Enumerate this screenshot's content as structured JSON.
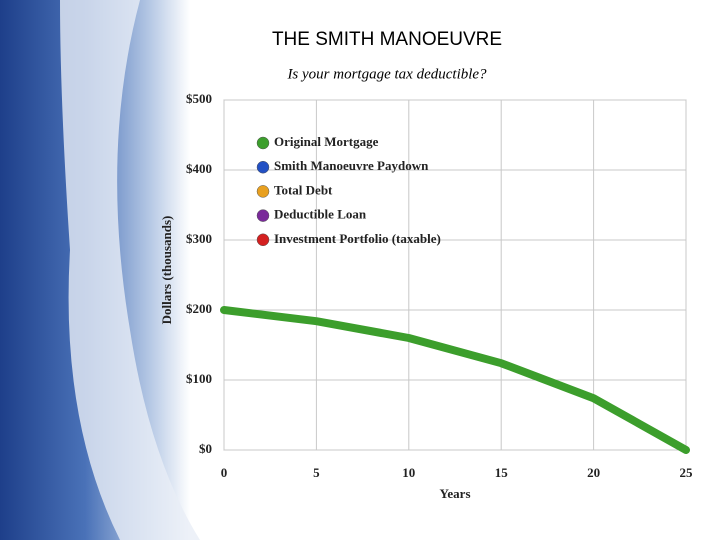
{
  "chart_data": {
    "type": "line",
    "title": "THE SMITH MANOEUVRE",
    "subtitle": "Is your mortgage tax deductible?",
    "x_label": "Years",
    "y_label": "Dollars (thousands)",
    "x": [
      0,
      5,
      10,
      15,
      20,
      25
    ],
    "series": [
      {
        "name": "Original Mortgage",
        "color": "#3c9e2c",
        "values": [
          200,
          184,
          160,
          124,
          74,
          0
        ]
      },
      {
        "name": "Smith Manoeuvre Paydown",
        "color": "#2250c4",
        "values": [
          null,
          null,
          null,
          null,
          null,
          null
        ]
      },
      {
        "name": "Total Debt",
        "color": "#e8a020",
        "values": [
          null,
          null,
          null,
          null,
          null,
          null
        ]
      },
      {
        "name": "Deductible Loan",
        "color": "#7a2a9a",
        "values": [
          null,
          null,
          null,
          null,
          null,
          null
        ]
      },
      {
        "name": "Investment Portfolio (taxable)",
        "color": "#d42020",
        "values": [
          null,
          null,
          null,
          null,
          null,
          null
        ]
      }
    ],
    "xlim": [
      0,
      25
    ],
    "xticks": [
      0,
      5,
      10,
      15,
      20,
      25
    ],
    "ylim": [
      0,
      500
    ],
    "yticks": [
      {
        "value": 0,
        "label": "$0"
      },
      {
        "value": 100,
        "label": "$100"
      },
      {
        "value": 200,
        "label": "$200"
      },
      {
        "value": 300,
        "label": "$300"
      },
      {
        "value": 400,
        "label": "$400"
      },
      {
        "value": 500,
        "label": "$500"
      }
    ],
    "grid": true,
    "legend": "upper left"
  }
}
